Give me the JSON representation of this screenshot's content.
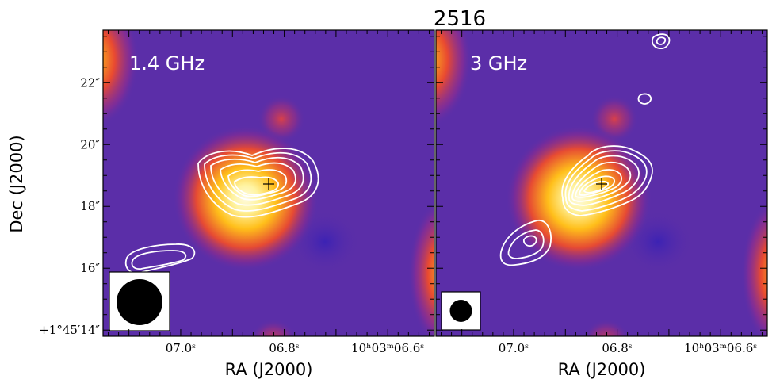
{
  "figure": {
    "title": "2516",
    "ylabel": "Dec (J2000)",
    "xlabel": "RA (J2000)"
  },
  "ra_ticks": [
    {
      "value": 7.0,
      "label": "07.0ˢ"
    },
    {
      "value": 6.8,
      "label": "06.8ˢ"
    },
    {
      "value": 6.6,
      "label": "10ʰ03ᵐ06.6ˢ"
    }
  ],
  "dec_ticks": [
    {
      "value": 22,
      "label": "22″"
    },
    {
      "value": 20,
      "label": "20″"
    },
    {
      "value": 18,
      "label": "18″"
    },
    {
      "value": 16,
      "label": "16″"
    },
    {
      "value": 14,
      "label": "+1°45′14″"
    }
  ],
  "panels": [
    {
      "label": "1.4 GHz",
      "beam_diameter_arcsec": 2.1
    },
    {
      "label": "3 GHz",
      "beam_diameter_arcsec": 1.0
    }
  ],
  "colors": {
    "background": "#5b2ea8",
    "contour": "#ffffff",
    "marker": "#000000",
    "beam": "#000000"
  },
  "chart_data": {
    "type": "heatmap",
    "title": "2516",
    "xlabel": "RA (J2000)",
    "ylabel": "Dec (J2000)",
    "x_axis": "RA, seconds of time past 10h03m",
    "y_axis": "Dec, arcsec past +1°45′",
    "xlim": [
      7.15,
      6.51
    ],
    "ylim": [
      13.8,
      23.7
    ],
    "source_position": {
      "ra_s": 6.795,
      "dec_arcsec": 18.7
    },
    "colormap": "purple-red-yellow",
    "contour_color": "#ffffff"
  }
}
